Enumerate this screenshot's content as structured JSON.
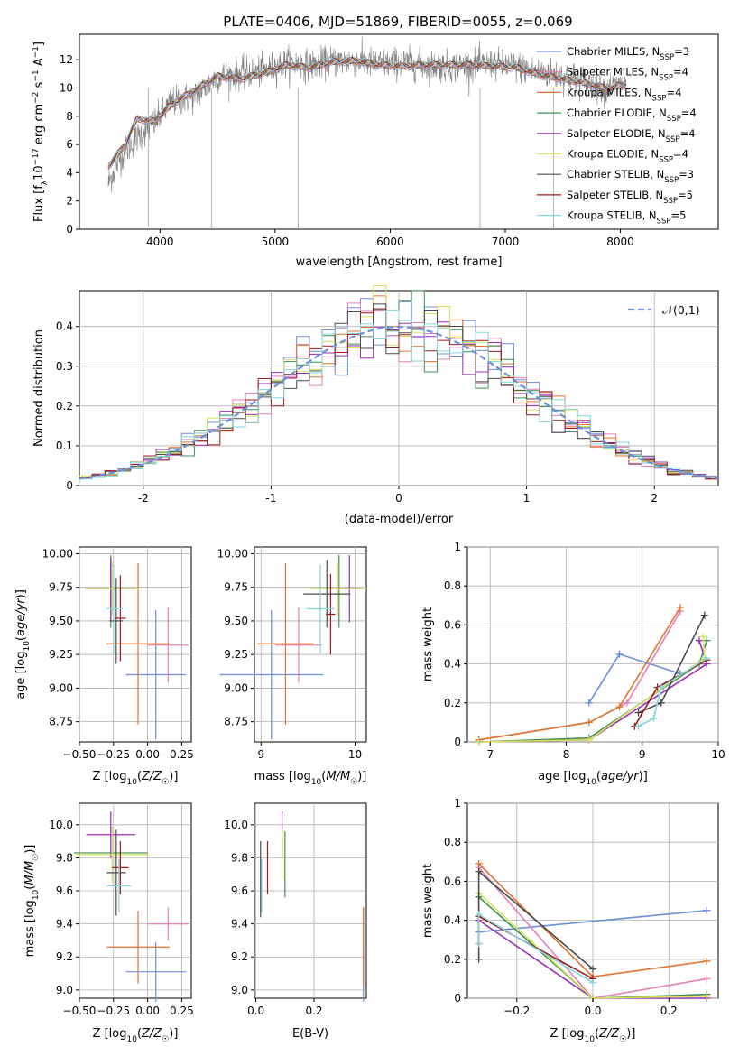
{
  "series_names": [
    "Chabrier MILES, N_SSP=3",
    "Salpeter MILES, N_SSP=4",
    "Kroupa MILES, N_SSP=4",
    "Chabrier ELODIE, N_SSP=4",
    "Salpeter ELODIE, N_SSP=4",
    "Kroupa ELODIE, N_SSP=4",
    "Chabrier STELIB, N_SSP=3",
    "Salpeter STELIB, N_SSP=5",
    "Kroupa STELIB, N_SSP=5"
  ],
  "series_colors": [
    "#6a8fdc",
    "#e47fb7",
    "#e0732d",
    "#3f8f54",
    "#9b2fb8",
    "#d7e45b",
    "#4a4a4a",
    "#9c1b1b",
    "#84d7dc"
  ],
  "chart_data": [
    {
      "id": "spectrum",
      "type": "line",
      "title": "PLATE=0406, MJD=51869, FIBERID=0055, z=0.069",
      "xlabel": "wavelength [Angstrom, rest frame]",
      "ylabel": "Flux [f_λ 10^-17 erg cm^-2 s^-1 A^-1]",
      "xlim": [
        3300,
        8850
      ],
      "ylim": [
        0,
        13.8
      ],
      "xticks": [
        4000,
        5000,
        6000,
        7000,
        8000
      ],
      "yticks": [
        0,
        2,
        4,
        6,
        8,
        10,
        12
      ],
      "grid": false,
      "legend": "right",
      "data_color": "#808080",
      "data_profile": [
        [
          3550,
          3.2
        ],
        [
          3650,
          5.0
        ],
        [
          3800,
          6.5
        ],
        [
          3950,
          7.5
        ],
        [
          4100,
          9.0
        ],
        [
          4300,
          9.4
        ],
        [
          4500,
          10.8
        ],
        [
          4700,
          11.0
        ],
        [
          4900,
          11.2
        ],
        [
          5100,
          11.8
        ],
        [
          5300,
          11.6
        ],
        [
          5500,
          11.9
        ],
        [
          5700,
          11.9
        ],
        [
          5900,
          11.7
        ],
        [
          6100,
          11.8
        ],
        [
          6300,
          11.6
        ],
        [
          6500,
          11.5
        ],
        [
          6700,
          11.6
        ],
        [
          6900,
          11.7
        ],
        [
          7100,
          11.5
        ],
        [
          7300,
          11.1
        ],
        [
          7500,
          10.9
        ],
        [
          7700,
          10.5
        ],
        [
          7850,
          10.0
        ],
        [
          8000,
          10.2
        ]
      ],
      "model_profile": [
        [
          3550,
          4.4
        ],
        [
          3700,
          6.0
        ],
        [
          3800,
          7.8
        ],
        [
          3950,
          7.6
        ],
        [
          4100,
          8.8
        ],
        [
          4300,
          9.8
        ],
        [
          4500,
          10.8
        ],
        [
          4700,
          10.6
        ],
        [
          4900,
          11.0
        ],
        [
          5100,
          11.6
        ],
        [
          5300,
          11.4
        ],
        [
          5500,
          11.8
        ],
        [
          5700,
          11.9
        ],
        [
          5900,
          11.6
        ],
        [
          6100,
          11.5
        ],
        [
          6300,
          11.6
        ],
        [
          6500,
          11.6
        ],
        [
          6700,
          11.6
        ],
        [
          6900,
          11.5
        ],
        [
          7100,
          11.4
        ],
        [
          7300,
          10.9
        ],
        [
          7500,
          10.6
        ],
        [
          7700,
          10.3
        ],
        [
          7900,
          9.9
        ],
        [
          8050,
          10.3
        ]
      ]
    },
    {
      "id": "residuals",
      "type": "histogram",
      "xlabel": "(data-model)/error",
      "ylabel": "Normed distribution",
      "xlim": [
        -2.5,
        2.5
      ],
      "ylim": [
        0,
        0.49
      ],
      "xticks": [
        -2,
        -1,
        0,
        1,
        2
      ],
      "yticks": [
        0.0,
        0.1,
        0.2,
        0.3,
        0.4
      ],
      "grid": true,
      "legend": "top-right",
      "reference_curve": {
        "name": "𝒩(0,1)",
        "color": "#6a8fdc",
        "style": "dashed"
      },
      "bins": {
        "start": -2.5,
        "width": 0.1,
        "count": 50
      }
    },
    {
      "id": "age-vs-Z",
      "type": "errorbar",
      "xlabel": "Z [log10(Z/Z☉)]",
      "ylabel": "age  [log10(age/yr)]",
      "xlim": [
        -0.5,
        0.32
      ],
      "ylim": [
        8.6,
        10.05
      ],
      "xticks": [
        -0.5,
        -0.25,
        0.0,
        0.25
      ],
      "xtick_labels": [
        "−0.50",
        "−0.25",
        "0.00",
        "0.25"
      ],
      "yticks": [
        8.75,
        9.0,
        9.25,
        9.5,
        9.75,
        10.0
      ],
      "ytick_labels": [
        "8.75",
        "9.00",
        "9.25",
        "9.50",
        "9.75",
        "10.00"
      ],
      "grid": true,
      "points": [
        {
          "s": 0,
          "x": 0.06,
          "y": 9.1,
          "xerr": 0.22,
          "yerr": 0.48
        },
        {
          "s": 1,
          "x": 0.15,
          "y": 9.32,
          "xerr": 0.15,
          "yerr": 0.28
        },
        {
          "s": 2,
          "x": -0.07,
          "y": 9.33,
          "xerr": 0.23,
          "yerr": 0.6
        },
        {
          "s": 3,
          "x": -0.27,
          "y": 9.72,
          "xerr": 0.0,
          "yerr": 0.27
        },
        {
          "s": 4,
          "x": -0.27,
          "y": 9.74,
          "xerr": 0.18,
          "yerr": 0.23
        },
        {
          "s": 5,
          "x": -0.26,
          "y": 9.74,
          "xerr": 0.2,
          "yerr": 0.2
        },
        {
          "s": 6,
          "x": -0.23,
          "y": 9.5,
          "xerr": 0.05,
          "yerr": 0.32
        },
        {
          "s": 7,
          "x": -0.2,
          "y": 9.52,
          "xerr": 0.04,
          "yerr": 0.32
        },
        {
          "s": 8,
          "x": -0.24,
          "y": 9.59,
          "xerr": 0.06,
          "yerr": 0.33
        }
      ]
    },
    {
      "id": "age-vs-mass",
      "type": "errorbar",
      "xlabel": "mass [log10(M/M☉)]",
      "xlim": [
        8.93,
        10.12
      ],
      "ylim": [
        8.6,
        10.05
      ],
      "xticks": [
        9,
        10
      ],
      "yticks": [
        8.75,
        9.0,
        9.25,
        9.5,
        9.75,
        10.0
      ],
      "ytick_labels": [
        "8.75",
        "9.00",
        "9.25",
        "9.50",
        "9.75",
        "10.00"
      ],
      "grid": true,
      "points": [
        {
          "s": 0,
          "x": 9.11,
          "y": 9.1,
          "xerr": 0.55,
          "yerr": 0.48
        },
        {
          "s": 1,
          "x": 9.4,
          "y": 9.32,
          "xerr": 0.25,
          "yerr": 0.28
        },
        {
          "s": 2,
          "x": 9.26,
          "y": 9.33,
          "xerr": 0.3,
          "yerr": 0.6
        },
        {
          "s": 3,
          "x": 9.83,
          "y": 9.72,
          "xerr": 0.0,
          "yerr": 0.27
        },
        {
          "s": 4,
          "x": 9.94,
          "y": 9.74,
          "xerr": 0.14,
          "yerr": 0.25
        },
        {
          "s": 5,
          "x": 9.82,
          "y": 9.74,
          "xerr": 0.3,
          "yerr": 0.2
        },
        {
          "s": 6,
          "x": 9.7,
          "y": 9.7,
          "xerr": 0.25,
          "yerr": 0.25
        },
        {
          "s": 7,
          "x": 9.74,
          "y": 9.55,
          "xerr": 0.05,
          "yerr": 0.3
        },
        {
          "s": 8,
          "x": 9.63,
          "y": 9.59,
          "xerr": 0.15,
          "yerr": 0.33
        }
      ]
    },
    {
      "id": "weight-vs-age",
      "type": "line",
      "xlabel": "age  [log10(age/yr)]",
      "ylabel": "mass weight",
      "xlim": [
        6.7,
        10.0
      ],
      "ylim": [
        0,
        1.0
      ],
      "xticks": [
        7,
        8,
        9,
        10
      ],
      "yticks": [
        0.0,
        0.2,
        0.4,
        0.6,
        0.8,
        1.0
      ],
      "grid": true,
      "series": [
        {
          "s": 0,
          "x": [
            8.3,
            8.7,
            9.5
          ],
          "y": [
            0.2,
            0.45,
            0.35
          ]
        },
        {
          "s": 1,
          "x": [
            6.85,
            8.3,
            8.8,
            9.5
          ],
          "y": [
            0.01,
            0.1,
            0.2,
            0.67
          ]
        },
        {
          "s": 2,
          "x": [
            6.85,
            8.3,
            8.7,
            9.5
          ],
          "y": [
            0.01,
            0.1,
            0.18,
            0.69
          ]
        },
        {
          "s": 3,
          "x": [
            6.85,
            8.3,
            9.75,
            9.85
          ],
          "y": [
            0.0,
            0.02,
            0.4,
            0.52
          ]
        },
        {
          "s": 4,
          "x": [
            6.85,
            8.3,
            9.85,
            9.75
          ],
          "y": [
            0.0,
            0.01,
            0.4,
            0.52
          ]
        },
        {
          "s": 5,
          "x": [
            6.85,
            8.3,
            9.82,
            9.8
          ],
          "y": [
            0.0,
            0.01,
            0.43,
            0.54
          ]
        },
        {
          "s": 6,
          "x": [
            8.95,
            9.25,
            9.82
          ],
          "y": [
            0.15,
            0.2,
            0.65
          ]
        },
        {
          "s": 7,
          "x": [
            8.9,
            9.2,
            9.85
          ],
          "y": [
            0.08,
            0.28,
            0.42
          ]
        },
        {
          "s": 8,
          "x": [
            8.95,
            9.15,
            9.25,
            9.85
          ],
          "y": [
            0.08,
            0.12,
            0.28,
            0.43
          ]
        }
      ]
    },
    {
      "id": "mass-vs-Z",
      "type": "errorbar",
      "xlabel": "Z [log10(Z/Z☉)]",
      "ylabel": "mass [log10(M/M☉)]",
      "xlim": [
        -0.5,
        0.32
      ],
      "ylim": [
        8.95,
        10.13
      ],
      "xticks": [
        -0.5,
        -0.25,
        0.0,
        0.25
      ],
      "xtick_labels": [
        "−0.50",
        "−0.25",
        "0.00",
        "0.25"
      ],
      "yticks": [
        9.0,
        9.2,
        9.4,
        9.6,
        9.8,
        10.0
      ],
      "ytick_labels": [
        "9.0",
        "9.2",
        "9.4",
        "9.6",
        "9.8",
        "10.0"
      ],
      "grid": true,
      "points": [
        {
          "s": 0,
          "x": 0.06,
          "y": 9.11,
          "xerr": 0.22,
          "yerr": 0.18
        },
        {
          "s": 1,
          "x": 0.15,
          "y": 9.4,
          "xerr": 0.15,
          "yerr": 0.1
        },
        {
          "s": 2,
          "x": -0.07,
          "y": 9.26,
          "xerr": 0.23,
          "yerr": 0.22
        },
        {
          "s": 3,
          "x": -0.27,
          "y": 9.83,
          "xerr": 0.27,
          "yerr": 0.0
        },
        {
          "s": 4,
          "x": -0.27,
          "y": 9.94,
          "xerr": 0.18,
          "yerr": 0.14
        },
        {
          "s": 5,
          "x": -0.26,
          "y": 9.82,
          "xerr": 0.27,
          "yerr": 0.17
        },
        {
          "s": 6,
          "x": -0.23,
          "y": 9.71,
          "xerr": 0.07,
          "yerr": 0.26
        },
        {
          "s": 7,
          "x": -0.2,
          "y": 9.74,
          "xerr": 0.06,
          "yerr": 0.16
        },
        {
          "s": 8,
          "x": -0.21,
          "y": 9.63,
          "xerr": 0.09,
          "yerr": 0.16
        }
      ]
    },
    {
      "id": "mass-vs-ebv",
      "type": "errorbar",
      "xlabel": "E(B-V)",
      "xlim": [
        -0.005,
        0.38
      ],
      "ylim": [
        8.95,
        10.13
      ],
      "xticks": [
        0.0,
        0.2
      ],
      "xtick_labels": [
        "0.0",
        "0.2"
      ],
      "yticks": [
        9.0,
        9.2,
        9.4,
        9.6,
        9.8,
        10.0
      ],
      "ytick_labels": [
        "9.0",
        "9.2",
        "9.4",
        "9.6",
        "9.8",
        "10.0"
      ],
      "grid": true,
      "points": [
        {
          "s": 0,
          "x": 0.37,
          "y": 9.11,
          "xerr": 0.0,
          "yerr": 0.18
        },
        {
          "s": 1,
          "x": 0.37,
          "y": 9.4,
          "xerr": 0.0,
          "yerr": 0.1
        },
        {
          "s": 2,
          "x": 0.37,
          "y": 9.26,
          "xerr": 0.0,
          "yerr": 0.24
        },
        {
          "s": 3,
          "x": 0.1,
          "y": 9.76,
          "xerr": 0.0,
          "yerr": 0.2
        },
        {
          "s": 4,
          "x": 0.09,
          "y": 9.94,
          "xerr": 0.0,
          "yerr": 0.14
        },
        {
          "s": 5,
          "x": 0.09,
          "y": 9.82,
          "xerr": 0.0,
          "yerr": 0.15
        },
        {
          "s": 6,
          "x": 0.016,
          "y": 9.67,
          "xerr": 0.0,
          "yerr": 0.23
        },
        {
          "s": 7,
          "x": 0.04,
          "y": 9.74,
          "xerr": 0.0,
          "yerr": 0.16
        },
        {
          "s": 8,
          "x": 0.02,
          "y": 9.63,
          "xerr": 0.0,
          "yerr": 0.16
        }
      ]
    },
    {
      "id": "weight-vs-Z",
      "type": "line",
      "xlabel": "Z [log10(Z/Z☉)]",
      "ylabel": "mass weight",
      "xlim": [
        -0.33,
        0.33
      ],
      "ylim": [
        0,
        1.0
      ],
      "xticks": [
        -0.2,
        0.0,
        0.2
      ],
      "xtick_labels": [
        "−0.2",
        "0.0",
        "0.2"
      ],
      "yticks": [
        0.0,
        0.2,
        0.4,
        0.6,
        0.8,
        1.0
      ],
      "grid": true,
      "series": [
        {
          "s": 0,
          "x": [
            -0.3,
            0.3
          ],
          "y": [
            0.34,
            0.45
          ]
        },
        {
          "s": 1,
          "x": [
            -0.3,
            0.0,
            0.3
          ],
          "y": [
            0.67,
            0.0,
            0.1
          ]
        },
        {
          "s": 2,
          "x": [
            -0.3,
            0.0,
            0.3
          ],
          "y": [
            0.69,
            0.11,
            0.19
          ]
        },
        {
          "s": 3,
          "x": [
            -0.3,
            0.0,
            0.3
          ],
          "y": [
            0.52,
            0.0,
            0.02
          ]
        },
        {
          "s": 4,
          "x": [
            -0.3,
            0.0,
            0.3
          ],
          "y": [
            0.4,
            0.0,
            0.0
          ]
        },
        {
          "s": 5,
          "x": [
            -0.3,
            0.0,
            0.3
          ],
          "y": [
            0.54,
            0.0,
            0.01
          ]
        },
        {
          "s": 6,
          "x": [
            -0.3,
            -0.3,
            0.0
          ],
          "y": [
            0.2,
            0.65,
            0.15
          ]
        },
        {
          "s": 7,
          "x": [
            -0.3,
            -0.3,
            0.0
          ],
          "y": [
            0.28,
            0.42,
            0.1
          ]
        },
        {
          "s": 8,
          "x": [
            -0.3,
            -0.3,
            0.0
          ],
          "y": [
            0.28,
            0.43,
            0.08
          ]
        }
      ]
    }
  ]
}
